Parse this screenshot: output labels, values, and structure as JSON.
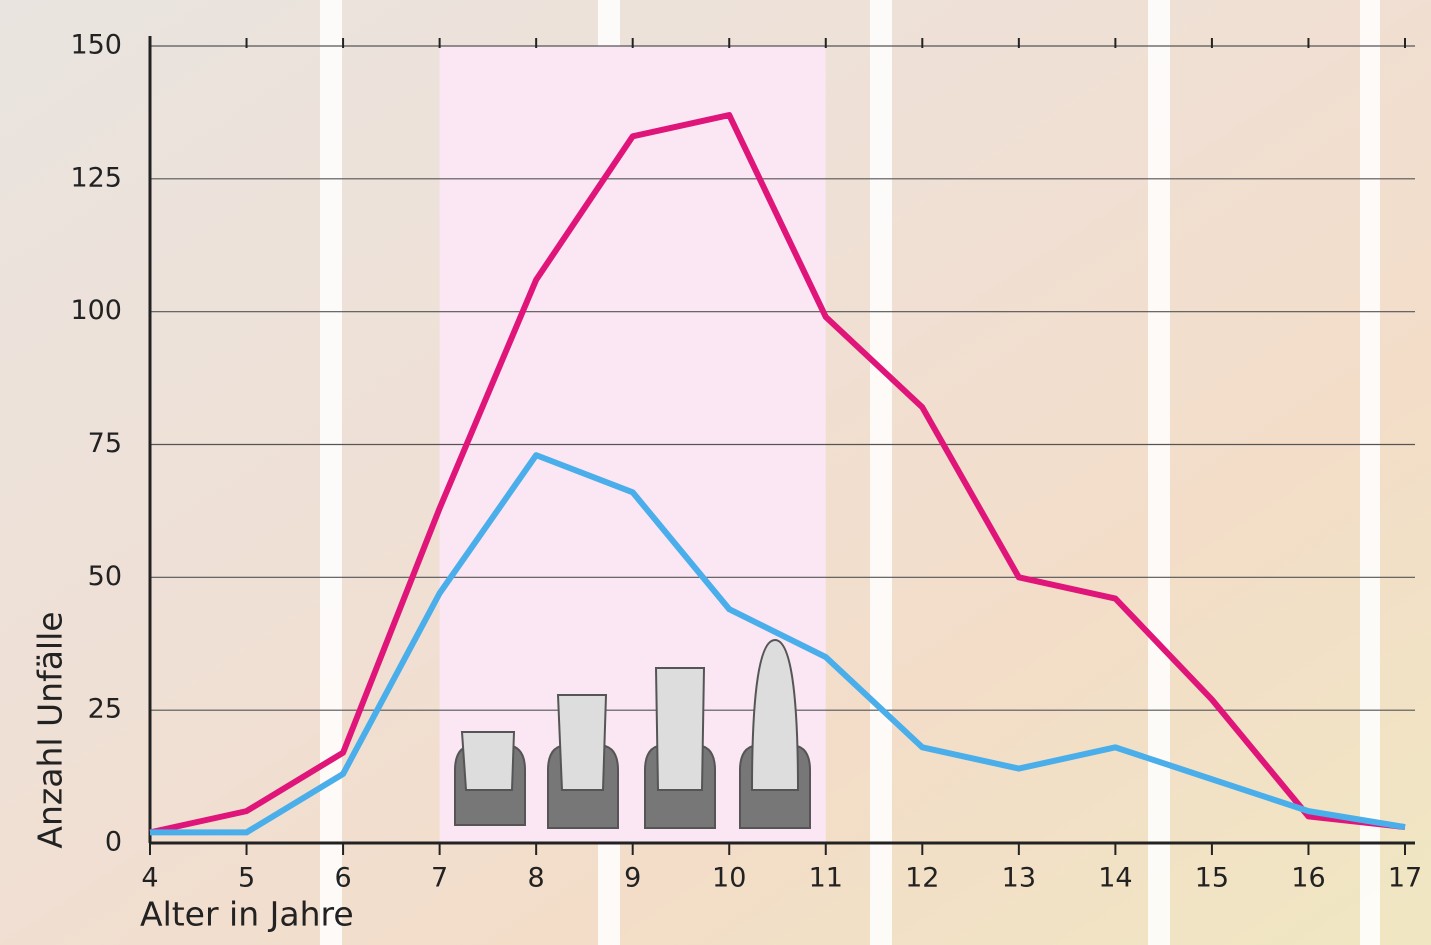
{
  "chart_data": {
    "type": "line",
    "x_label": "Alter in Jahre",
    "y_label": "Anzahl Unfälle",
    "x": [
      4,
      5,
      6,
      7,
      8,
      9,
      10,
      11,
      12,
      13,
      14,
      15,
      16,
      17
    ],
    "series": [
      {
        "color": "#e0157a",
        "values": [
          2,
          6,
          17,
          63,
          106,
          133,
          137,
          99,
          82,
          50,
          46,
          27,
          5,
          3
        ]
      },
      {
        "color": "#4aaeea",
        "values": [
          2,
          2,
          13,
          47,
          73,
          66,
          44,
          35,
          18,
          14,
          18,
          12,
          6,
          3
        ]
      }
    ],
    "xlim": [
      4,
      17
    ],
    "xticks": [
      4,
      5,
      6,
      7,
      8,
      9,
      10,
      11,
      12,
      13,
      14,
      15,
      16,
      17
    ],
    "ylim": [
      0,
      150
    ],
    "yticks": [
      0,
      25,
      50,
      75,
      100,
      125,
      150
    ],
    "grid": true,
    "shaded_range": [
      7,
      11
    ],
    "shaded_color": "#fbe6f4"
  }
}
